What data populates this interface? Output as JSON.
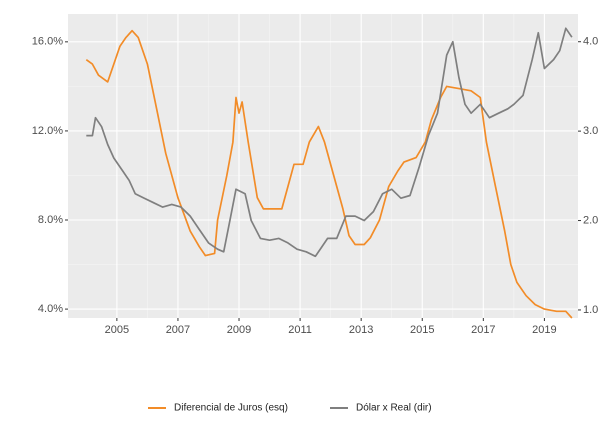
{
  "chart_data": {
    "type": "line",
    "xlim": [
      2003.4,
      2020.1
    ],
    "xticks": [
      2005,
      2007,
      2009,
      2011,
      2013,
      2015,
      2017,
      2019
    ],
    "ylim": [
      3.6,
      17.25
    ],
    "yticks": [
      {
        "value": 4,
        "label": "4.0%"
      },
      {
        "value": 8,
        "label": "8.0%"
      },
      {
        "value": 12,
        "label": "12.0%"
      },
      {
        "value": 16,
        "label": "16.0%"
      }
    ],
    "y2lim": [
      0.91,
      4.31
    ],
    "y2ticks": [
      {
        "value": 1,
        "label": "1.0"
      },
      {
        "value": 2,
        "label": "2.0"
      },
      {
        "value": 3,
        "label": "3.0"
      },
      {
        "value": 4,
        "label": "4.0"
      }
    ],
    "grid": true,
    "legend": "bottom",
    "series": [
      {
        "name": "Diferencial de Juros (esq)",
        "color": "#f28c28",
        "x": [
          2004.0,
          2004.2,
          2004.4,
          2004.7,
          2004.9,
          2005.1,
          2005.3,
          2005.5,
          2005.7,
          2006.0,
          2006.3,
          2006.6,
          2007.0,
          2007.4,
          2007.7,
          2007.9,
          2008.2,
          2008.3,
          2008.6,
          2008.8,
          2008.9,
          2009.0,
          2009.1,
          2009.3,
          2009.6,
          2009.8,
          2010.4,
          2010.6,
          2010.8,
          2011.1,
          2011.3,
          2011.6,
          2011.8,
          2012.1,
          2012.4,
          2012.6,
          2012.8,
          2013.1,
          2013.3,
          2013.6,
          2013.9,
          2014.2,
          2014.4,
          2014.8,
          2015.1,
          2015.3,
          2015.6,
          2015.8,
          2016.2,
          2016.6,
          2016.9,
          2017.1,
          2017.4,
          2017.7,
          2017.9,
          2018.1,
          2018.4,
          2018.7,
          2019.0,
          2019.4,
          2019.7,
          2019.9
        ],
        "values": [
          15.2,
          15.0,
          14.5,
          14.2,
          15.0,
          15.8,
          16.2,
          16.5,
          16.2,
          15.0,
          13.0,
          11.0,
          9.0,
          7.5,
          6.8,
          6.4,
          6.5,
          8.0,
          10.0,
          11.5,
          13.5,
          12.8,
          13.3,
          11.5,
          9.0,
          8.5,
          8.5,
          9.5,
          10.5,
          10.5,
          11.5,
          12.2,
          11.5,
          10.0,
          8.5,
          7.3,
          6.9,
          6.9,
          7.2,
          8.0,
          9.5,
          10.2,
          10.6,
          10.8,
          11.5,
          12.5,
          13.5,
          14.0,
          13.9,
          13.8,
          13.5,
          11.5,
          9.5,
          7.5,
          6.0,
          5.2,
          4.6,
          4.2,
          4.0,
          3.9,
          3.9,
          3.6
        ]
      },
      {
        "name": "Dólar x Real (dir)",
        "color": "#7f7f7f",
        "axis": "y2",
        "x": [
          2004.0,
          2004.2,
          2004.3,
          2004.5,
          2004.7,
          2004.9,
          2005.2,
          2005.4,
          2005.6,
          2005.9,
          2006.2,
          2006.5,
          2006.8,
          2007.1,
          2007.4,
          2007.7,
          2008.0,
          2008.3,
          2008.5,
          2008.7,
          2008.9,
          2009.2,
          2009.4,
          2009.7,
          2010.0,
          2010.3,
          2010.6,
          2010.9,
          2011.2,
          2011.5,
          2011.7,
          2011.9,
          2012.2,
          2012.5,
          2012.8,
          2013.1,
          2013.4,
          2013.7,
          2014.0,
          2014.3,
          2014.6,
          2014.9,
          2015.2,
          2015.5,
          2015.8,
          2016.0,
          2016.2,
          2016.4,
          2016.6,
          2016.9,
          2017.2,
          2017.5,
          2017.8,
          2018.0,
          2018.3,
          2018.6,
          2018.8,
          2019.0,
          2019.3,
          2019.5,
          2019.7,
          2019.9
        ],
        "values": [
          2.95,
          2.95,
          3.15,
          3.05,
          2.85,
          2.7,
          2.55,
          2.45,
          2.3,
          2.25,
          2.2,
          2.15,
          2.18,
          2.15,
          2.05,
          1.9,
          1.75,
          1.68,
          1.65,
          2.0,
          2.35,
          2.3,
          2.0,
          1.8,
          1.78,
          1.8,
          1.75,
          1.68,
          1.65,
          1.6,
          1.7,
          1.8,
          1.8,
          2.05,
          2.05,
          2.0,
          2.1,
          2.3,
          2.35,
          2.25,
          2.28,
          2.6,
          2.95,
          3.2,
          3.85,
          4.0,
          3.6,
          3.3,
          3.2,
          3.3,
          3.15,
          3.2,
          3.25,
          3.3,
          3.4,
          3.8,
          4.1,
          3.7,
          3.8,
          3.9,
          4.15,
          4.05
        ]
      }
    ]
  }
}
